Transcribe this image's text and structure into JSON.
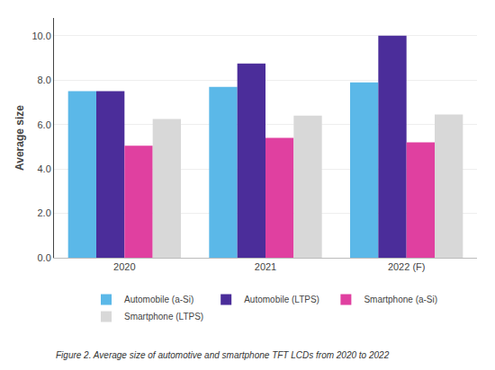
{
  "chart_data": {
    "type": "bar",
    "categories": [
      "2020",
      "2021",
      "2022 (F)"
    ],
    "series": [
      {
        "name": "Automobile (a-Si)",
        "color": "#5BB8E8",
        "values": [
          7.5,
          7.7,
          7.9
        ]
      },
      {
        "name": "Automobile (LTPS)",
        "color": "#4B2D9A",
        "values": [
          7.5,
          8.75,
          10.0
        ]
      },
      {
        "name": "Smartphone (a-Si)",
        "color": "#E040A0",
        "values": [
          5.05,
          5.4,
          5.2
        ]
      },
      {
        "name": "Smartphone (LTPS)",
        "color": "#D8D8D8",
        "values": [
          6.25,
          6.4,
          6.45
        ]
      }
    ],
    "ylabel": "Average size",
    "ylim": [
      0.0,
      10.8
    ],
    "yticks": [
      {
        "value": 0.0,
        "label": "0.0"
      },
      {
        "value": 2.0,
        "label": "2.0"
      },
      {
        "value": 4.0,
        "label": "4.0"
      },
      {
        "value": 6.0,
        "label": "6.0"
      },
      {
        "value": 8.0,
        "label": "8.0"
      },
      {
        "value": 10.0,
        "label": "10.0"
      }
    ],
    "grid": true,
    "legend": "bottom",
    "annotations": [
      "Figure 2. Average size of automotive and smartphone TFT LCDs from 2020 to 2022"
    ]
  }
}
